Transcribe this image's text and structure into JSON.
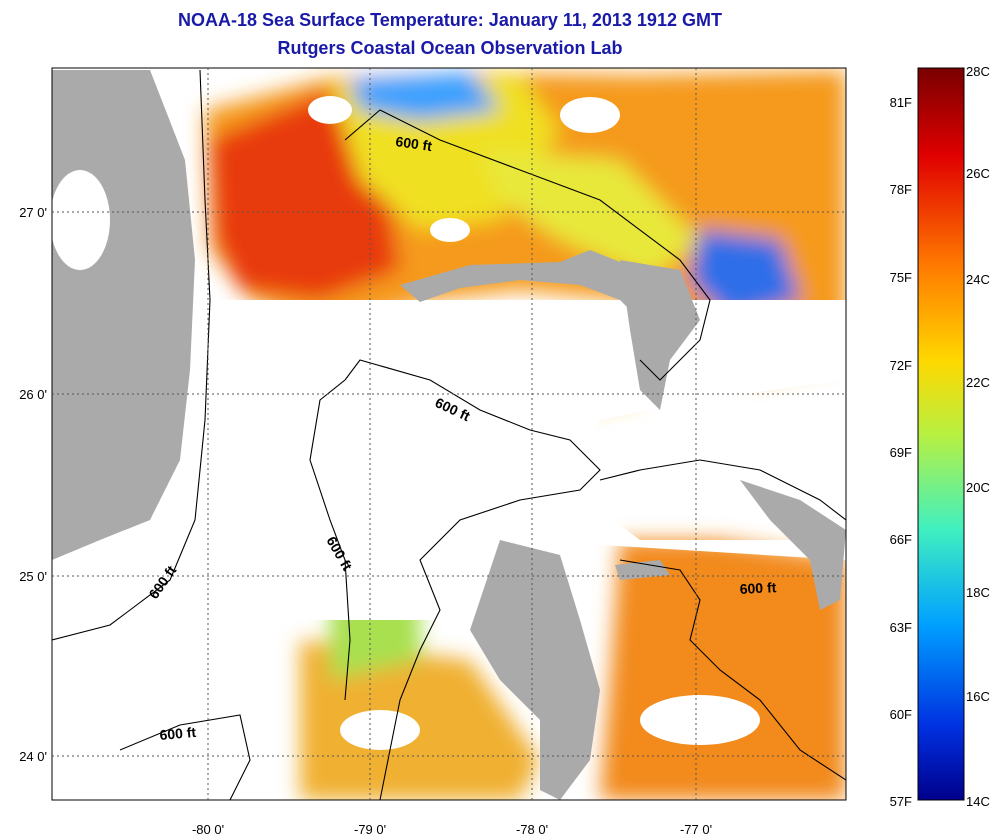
{
  "map": {
    "title": "NOAA-18 Sea Surface Temperature:  January 11, 2013 1912 GMT",
    "subtitle": "Rutgers Coastal Ocean Observation Lab",
    "longitude_labels": [
      "-80 0'",
      "-79 0'",
      "-78 0'",
      "-77 0'"
    ],
    "latitude_labels": [
      "27 0'",
      "26 0'",
      "25 0'",
      "24 0'"
    ],
    "contour_labels": [
      "600 ft",
      "600 ft",
      "600 ft",
      "600 ft",
      "600 ft",
      "600 ft"
    ],
    "land_color": "#aaaaaa",
    "cloud_color": "#ffffff",
    "grid": "dotted"
  },
  "colorbar": {
    "fahrenheit_labels": [
      "81F",
      "78F",
      "75F",
      "72F",
      "69F",
      "66F",
      "63F",
      "60F",
      "57F"
    ],
    "celsius_labels": [
      "28C",
      "26C",
      "24C",
      "22C",
      "20C",
      "18C",
      "16C",
      "14C"
    ],
    "colors": [
      "#7a0000",
      "#e00000",
      "#ff7a00",
      "#ffd800",
      "#b8f040",
      "#40f0c0",
      "#00a0ff",
      "#0030e0",
      "#00008c"
    ]
  }
}
